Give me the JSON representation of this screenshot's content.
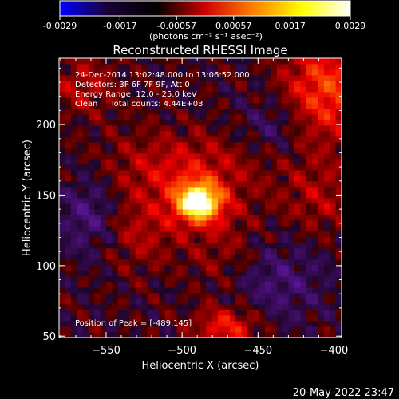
{
  "chart_data": {
    "type": "heatmap",
    "title": "Reconstructed RHESSI Image",
    "xlabel": "Heliocentric X (arcsec)",
    "ylabel": "Heliocentric Y (arcsec)",
    "xlim": [
      -581,
      -395
    ],
    "ylim": [
      49,
      247
    ],
    "xticks": [
      -550,
      -500,
      -450,
      -400
    ],
    "yticks": [
      50,
      100,
      150,
      200
    ],
    "grid": false,
    "colorbar": {
      "min": -0.0029,
      "max": 0.0029,
      "tick_values": [
        -0.0029,
        -0.0017,
        -0.00057,
        0.00057,
        0.0017,
        0.0029
      ],
      "tick_labels": [
        "-0.0029",
        "-0.0017",
        "-0.00057",
        "0.00057",
        "0.0017",
        "0.0029"
      ],
      "unit_label": "(photons cm⁻² s⁻¹ asec⁻²)",
      "colors": [
        "#0000ff",
        "#1a0033",
        "#000000",
        "#cc0000",
        "#ff8000",
        "#ffff00",
        "#ffffff"
      ]
    },
    "annotations": [
      "24-Dec-2014 13:02:48.000 to 13:06:52.000",
      "Detectors: 3F 6F 7F 9F, Att 0",
      "Energy Range: 12.0 - 25.0 keV",
      "Clean     Total counts: 4.44E+03"
    ],
    "peak_label": "Position of Peak = [-489,145]",
    "peak": {
      "x": -489,
      "y": 145
    },
    "sources": [
      {
        "x": -489,
        "y": 145,
        "sx": 11,
        "sy": 10,
        "amp": 1.0
      },
      {
        "x": -500,
        "y": 168,
        "sx": 35,
        "sy": 18,
        "amp": 0.28
      },
      {
        "x": -530,
        "y": 125,
        "sx": 20,
        "sy": 18,
        "amp": 0.22
      },
      {
        "x": -470,
        "y": 110,
        "sx": 18,
        "sy": 22,
        "amp": 0.18
      },
      {
        "x": -405,
        "y": 225,
        "sx": 20,
        "sy": 25,
        "amp": 0.45
      },
      {
        "x": -470,
        "y": 57,
        "sx": 15,
        "sy": 10,
        "amp": 0.38
      },
      {
        "x": -410,
        "y": 148,
        "sx": 18,
        "sy": 20,
        "amp": 0.18
      },
      {
        "x": -565,
        "y": 228,
        "sx": 16,
        "sy": 14,
        "amp": 0.22
      },
      {
        "x": -560,
        "y": 135,
        "sx": 15,
        "sy": 20,
        "amp": -0.28
      },
      {
        "x": -440,
        "y": 90,
        "sx": 25,
        "sy": 22,
        "amp": -0.22
      },
      {
        "x": -440,
        "y": 200,
        "sx": 15,
        "sy": 15,
        "amp": -0.18
      }
    ]
  },
  "timestamp": "20-May-2022 23:47"
}
